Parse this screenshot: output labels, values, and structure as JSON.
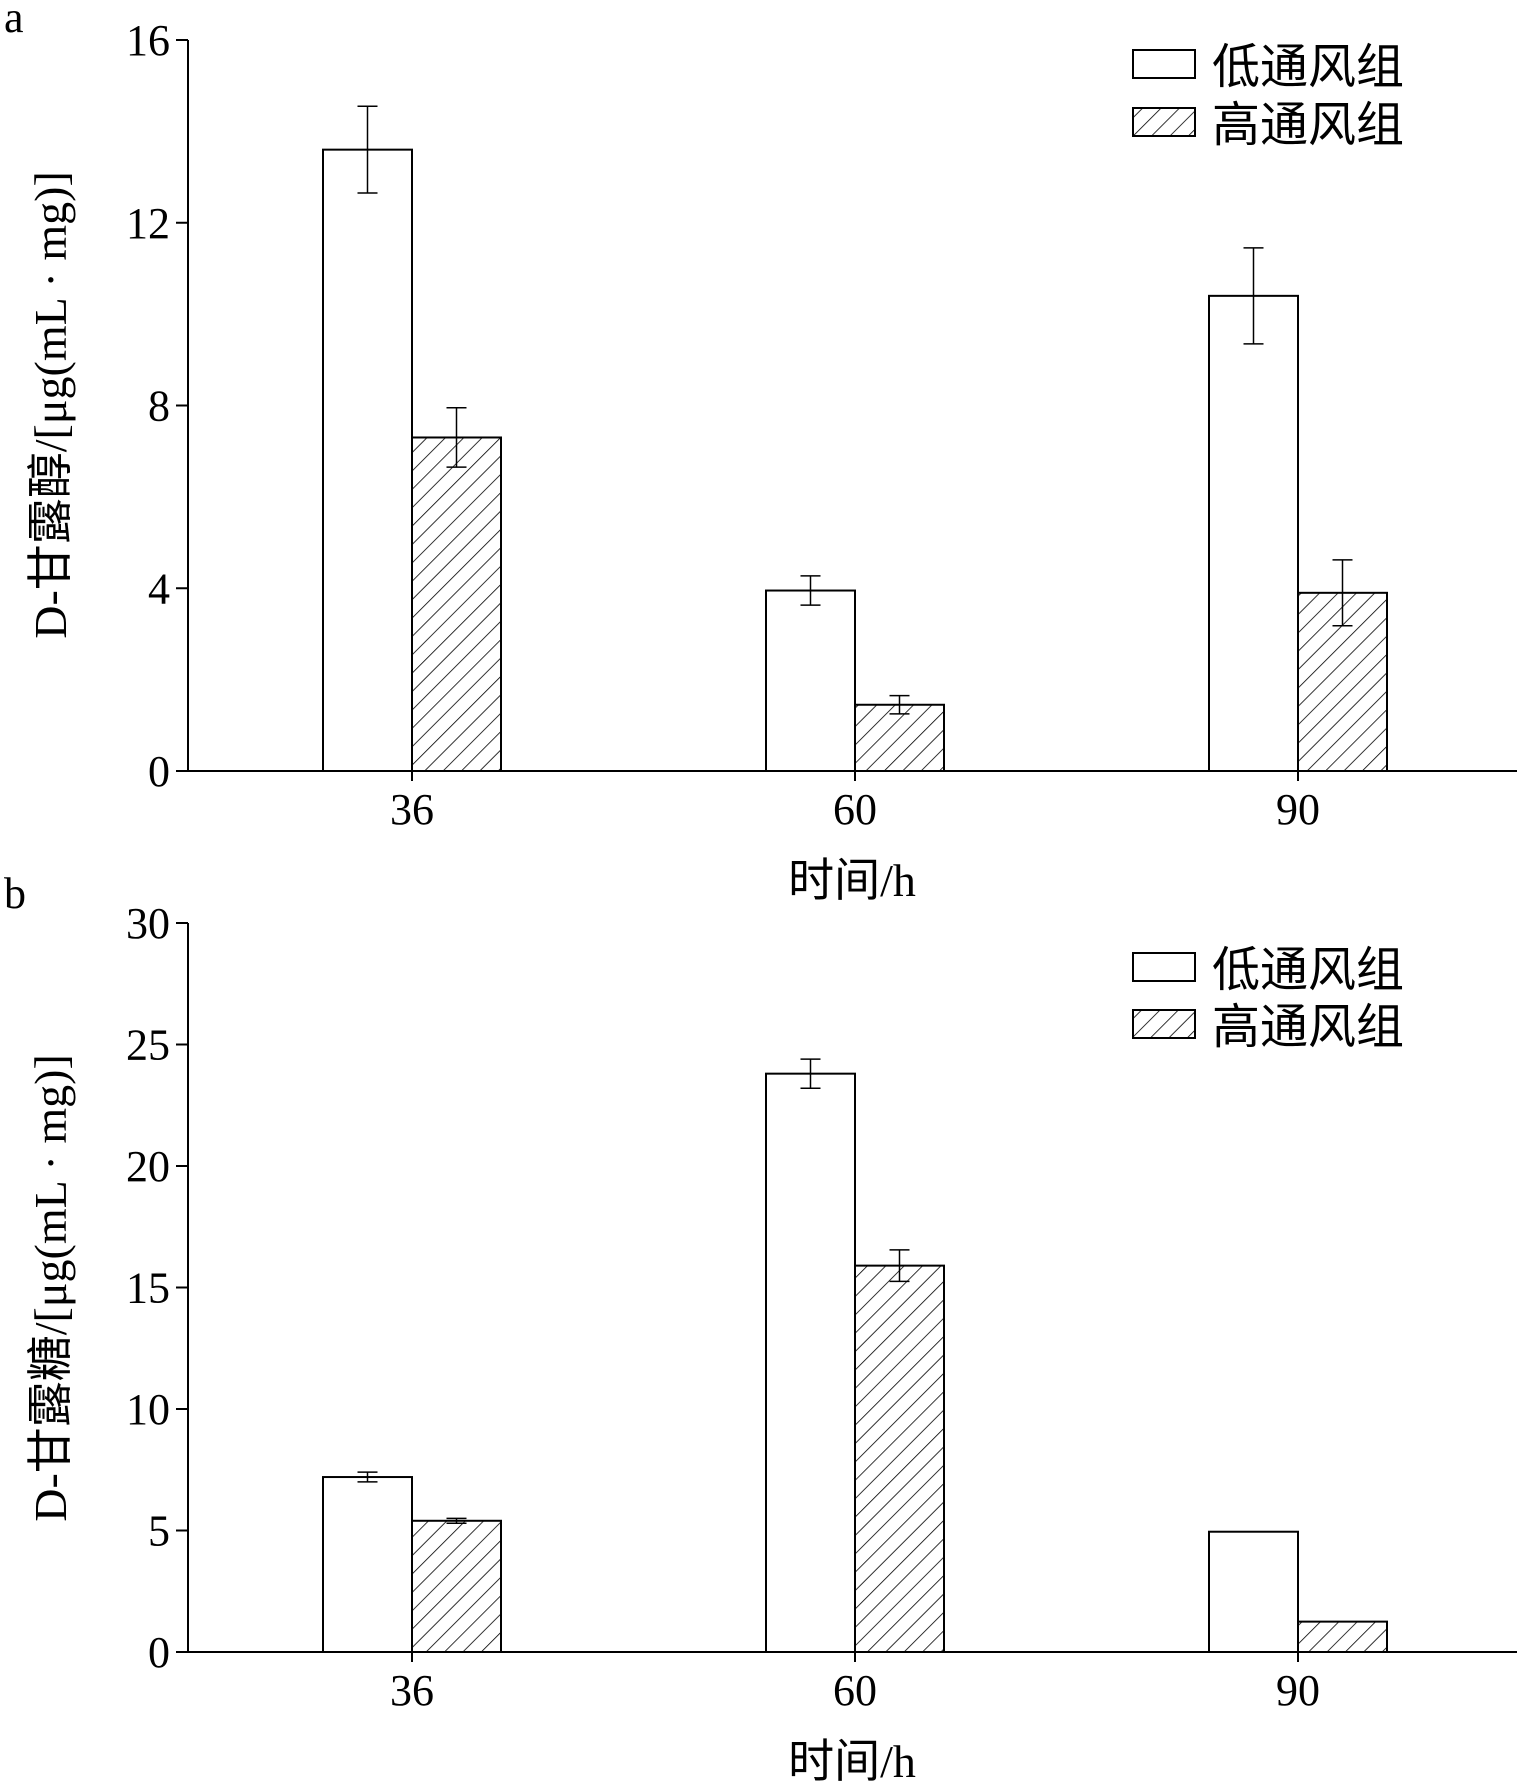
{
  "colors": {
    "ink": "#000000",
    "fill_low": "#ffffff",
    "hatch": "#000000"
  },
  "legend": {
    "low_label": "低通风组",
    "high_label": "高通风组"
  },
  "chart_data": [
    {
      "type": "bar",
      "panel_label": "a",
      "categories": [
        "36",
        "60",
        "90"
      ],
      "xlabel": "时间/h",
      "ylabel": "D-甘露醇/[μg(mL · mg)]",
      "ylim": [
        0,
        16
      ],
      "yticks": [
        0,
        4,
        8,
        12,
        16
      ],
      "ytick_labels": [
        "0",
        "4",
        "8",
        "12",
        "16"
      ],
      "legend_position": "top-right",
      "series": [
        {
          "name": "低通风组",
          "values": [
            13.6,
            3.95,
            10.4
          ],
          "errors": [
            0.95,
            0.32,
            1.05
          ],
          "pattern": "open"
        },
        {
          "name": "高通风组",
          "values": [
            7.3,
            1.45,
            3.9
          ],
          "errors": [
            0.65,
            0.2,
            0.72
          ],
          "pattern": "hatched"
        }
      ]
    },
    {
      "type": "bar",
      "panel_label": "b",
      "categories": [
        "36",
        "60",
        "90"
      ],
      "xlabel": "时间/h",
      "ylabel": "D-甘露糖/[μg(mL · mg)]",
      "ylim": [
        0,
        30
      ],
      "yticks": [
        0,
        5,
        10,
        15,
        20,
        25,
        30
      ],
      "ytick_labels": [
        "0",
        "5",
        "10",
        "15",
        "20",
        "25",
        "30"
      ],
      "legend_position": "top-right",
      "series": [
        {
          "name": "低通风组",
          "values": [
            7.2,
            23.8,
            4.95
          ],
          "errors": [
            0.2,
            0.6,
            0
          ],
          "pattern": "open"
        },
        {
          "name": "高通风组",
          "values": [
            5.4,
            15.9,
            1.25
          ],
          "errors": [
            0.1,
            0.65,
            0
          ],
          "pattern": "hatched"
        }
      ]
    }
  ]
}
